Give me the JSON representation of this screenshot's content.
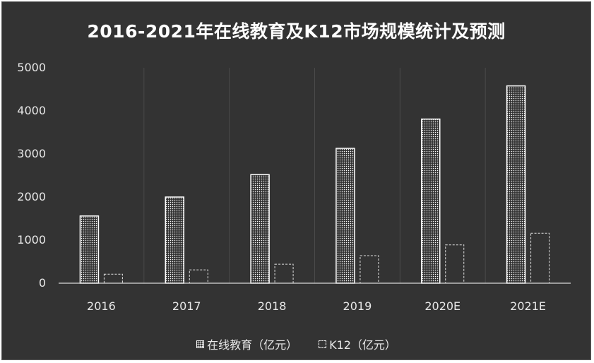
{
  "chart_data": {
    "type": "bar",
    "title": "2016-2021年在线教育及K12市场规模统计及预测",
    "categories": [
      "2016",
      "2017",
      "2018",
      "2019",
      "2020E",
      "2021E"
    ],
    "series": [
      {
        "name": "在线教育（亿元）",
        "values": [
          1560,
          2000,
          2520,
          3130,
          3810,
          4580
        ]
      },
      {
        "name": "K12（亿元）",
        "values": [
          210,
          310,
          440,
          640,
          890,
          1160
        ]
      }
    ],
    "ylim": [
      0,
      5000
    ],
    "yticks": [
      0,
      1000,
      2000,
      3000,
      4000,
      5000
    ],
    "grid": "vertical separators",
    "legend": "bottom-center",
    "colors": {
      "background": "#333333",
      "text": "#e8e8e8",
      "bar_outline": "#ffffff"
    }
  }
}
